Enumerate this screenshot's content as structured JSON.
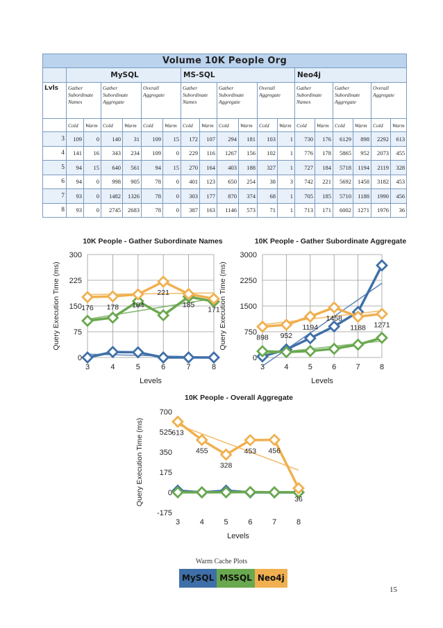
{
  "table": {
    "title": "Volume 10K People Org",
    "dbs": [
      "MySQL",
      "MS-SQL",
      "Neo4j"
    ],
    "lvls_label": "Lvls",
    "ops": [
      "Gather Subordinate Names",
      "Gather Subordinate Aggregate",
      "Overall Aggregate"
    ],
    "cold_label": "Cold",
    "warm_label": "Warm",
    "rows": [
      {
        "lvl": "3",
        "vals": [
          "109",
          "0",
          "140",
          "31",
          "109",
          "15",
          "172",
          "107",
          "294",
          "181",
          "103",
          "1",
          "730",
          "176",
          "6129",
          "898",
          "2292",
          "613"
        ]
      },
      {
        "lvl": "4",
        "vals": [
          "141",
          "16",
          "343",
          "234",
          "109",
          "0",
          "229",
          "116",
          "1267",
          "156",
          "102",
          "1",
          "776",
          "178",
          "5865",
          "952",
          "2073",
          "455"
        ]
      },
      {
        "lvl": "5",
        "vals": [
          "94",
          "15",
          "640",
          "561",
          "94",
          "15",
          "270",
          "164",
          "403",
          "188",
          "327",
          "1",
          "727",
          "184",
          "5718",
          "1194",
          "2119",
          "328"
        ]
      },
      {
        "lvl": "6",
        "vals": [
          "94",
          "0",
          "998",
          "905",
          "78",
          "0",
          "401",
          "123",
          "650",
          "254",
          "38",
          "3",
          "742",
          "221",
          "5692",
          "1458",
          "3182",
          "453"
        ]
      },
      {
        "lvl": "7",
        "vals": [
          "93",
          "0",
          "1482",
          "1326",
          "78",
          "0",
          "303",
          "177",
          "870",
          "374",
          "68",
          "1",
          "705",
          "185",
          "5710",
          "1188",
          "1990",
          "456"
        ]
      },
      {
        "lvl": "8",
        "vals": [
          "93",
          "0",
          "2745",
          "2683",
          "78",
          "0",
          "387",
          "163",
          "1146",
          "573",
          "71",
          "1",
          "713",
          "171",
          "6002",
          "1271",
          "1976",
          "36"
        ]
      }
    ]
  },
  "colors": {
    "mysql": "#3f6fa8",
    "mssql": "#6aa84f",
    "neo4j": "#f0b050"
  },
  "chart_data": [
    {
      "type": "line",
      "title": "10K People - Gather Subordinate Names",
      "xlabel": "Levels",
      "ylabel": "Query Execution Time (ms)",
      "x": [
        3,
        4,
        5,
        6,
        7,
        8
      ],
      "xlim": [
        3,
        8
      ],
      "ylim": [
        0,
        300
      ],
      "yticks": [
        0,
        75,
        150,
        225,
        300
      ],
      "grid": true,
      "series": [
        {
          "values": [
            0,
            16,
            15,
            0,
            0,
            0
          ]
        },
        {
          "values": [
            107,
            116,
            164,
            123,
            177,
            163
          ]
        },
        {
          "values": [
            176,
            178,
            184,
            221,
            185,
            171
          ],
          "labels": [
            "176",
            "178",
            "184",
            "221",
            "185",
            "171"
          ]
        }
      ]
    },
    {
      "type": "line",
      "title": "10K People - Gather Subordinate Aggregate",
      "xlabel": "Levels",
      "ylabel": "Query Execution Time (ms)",
      "x": [
        3,
        4,
        5,
        6,
        7,
        8
      ],
      "xlim": [
        3,
        8
      ],
      "ylim": [
        0,
        3000
      ],
      "yticks": [
        0,
        750,
        1500,
        2250,
        3000
      ],
      "grid": true,
      "series": [
        {
          "values": [
            31,
            234,
            561,
            905,
            1326,
            2683
          ]
        },
        {
          "values": [
            181,
            156,
            188,
            254,
            374,
            573
          ]
        },
        {
          "values": [
            898,
            952,
            1194,
            1458,
            1188,
            1271
          ],
          "labels": [
            "898",
            "952",
            "1194",
            "1458",
            "1188",
            "1271"
          ]
        }
      ]
    },
    {
      "type": "line",
      "title": "10K People - Overall Aggregate",
      "xlabel": "Levels",
      "ylabel": "Query Execution Time (ms)",
      "x": [
        3,
        4,
        5,
        6,
        7,
        8
      ],
      "xlim": [
        3,
        8
      ],
      "ylim": [
        -175,
        700
      ],
      "yticks": [
        -175,
        0,
        175,
        350,
        525,
        700
      ],
      "grid": false,
      "series": [
        {
          "values": [
            15,
            0,
            15,
            0,
            0,
            0
          ]
        },
        {
          "values": [
            1,
            1,
            1,
            3,
            1,
            1
          ]
        },
        {
          "values": [
            613,
            455,
            328,
            453,
            456,
            36
          ],
          "labels": [
            "613",
            "455",
            "328",
            "453",
            "456",
            "36"
          ]
        }
      ]
    }
  ],
  "caption": "Warm Cache Plots",
  "legend": [
    "MySQL",
    "MSSQL",
    "Neo4j"
  ],
  "page_number": "15"
}
